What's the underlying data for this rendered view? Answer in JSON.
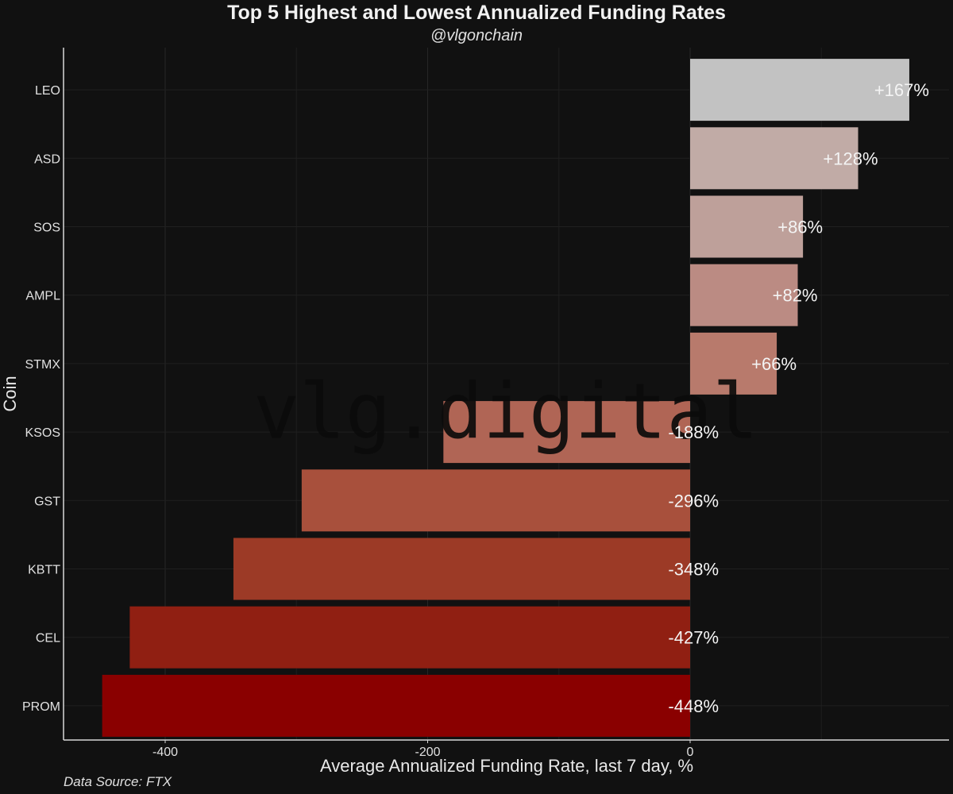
{
  "chart_data": {
    "type": "bar",
    "orientation": "horizontal",
    "title": "Top 5 Highest and Lowest Annualized Funding Rates",
    "subtitle": "@vlgonchain",
    "xlabel": "Average Annualized Funding Rate, last 7 day, %",
    "ylabel": "Coin",
    "xlim": [
      -475,
      200
    ],
    "xticks": [
      -400,
      -200,
      0
    ],
    "xtick_labels": [
      "-400",
      "-200",
      "0"
    ],
    "grid": true,
    "watermark": "vlg.digital",
    "source": "Data Source: FTX",
    "categories": [
      "LEO",
      "ASD",
      "SOS",
      "AMPL",
      "STMX",
      "KSOS",
      "GST",
      "KBTT",
      "CEL",
      "PROM"
    ],
    "values": [
      167,
      128,
      86,
      82,
      66,
      -188,
      -296,
      -348,
      -427,
      -448
    ],
    "value_labels": [
      "+167%",
      "+128%",
      "+86%",
      "+82%",
      "+66%",
      "-188%",
      "-296%",
      "-348%",
      "-427%",
      "-448%"
    ],
    "colors": [
      "#c2c2c2",
      "#c1aba6",
      "#bea09a",
      "#bb8b83",
      "#b87a6c",
      "#b06555",
      "#a8503c",
      "#9c3a26",
      "#901f12",
      "#8a0000"
    ]
  }
}
